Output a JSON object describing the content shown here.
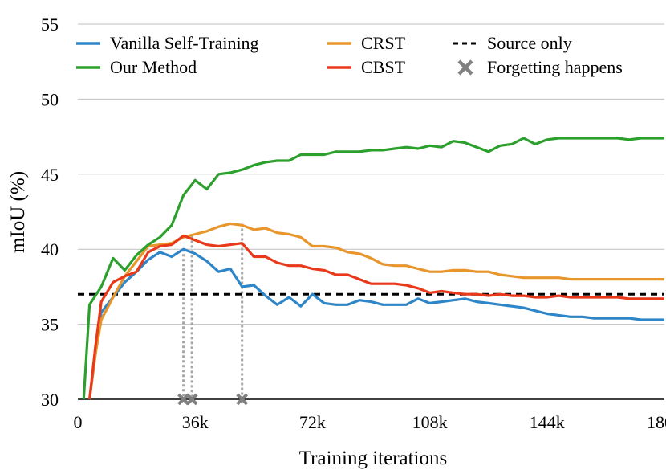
{
  "chart_data": {
    "type": "line",
    "title": "",
    "xlabel": "Training iterations",
    "ylabel": "mIoU (%)",
    "xlim": [
      0,
      180000
    ],
    "ylim": [
      30,
      55
    ],
    "x_ticks": [
      0,
      36000,
      72000,
      108000,
      144000,
      180000
    ],
    "x_tick_labels": [
      "0",
      "36k",
      "72k",
      "108k",
      "144k",
      "180k"
    ],
    "y_ticks": [
      30,
      35,
      40,
      45,
      50,
      55
    ],
    "y_tick_labels": [
      "30",
      "35",
      "40",
      "45",
      "50",
      "55"
    ],
    "legend_position": "top",
    "series": [
      {
        "name": "Vanilla Self-Training",
        "color": "#2e86c8",
        "points": [
          [
            3600,
            30
          ],
          [
            5400,
            33
          ],
          [
            7200,
            35.8
          ],
          [
            10800,
            36.8
          ],
          [
            14400,
            37.8
          ],
          [
            18000,
            38.5
          ],
          [
            21600,
            39.3
          ],
          [
            25200,
            39.8
          ],
          [
            28800,
            39.5
          ],
          [
            32400,
            40.0
          ],
          [
            36000,
            39.7
          ],
          [
            39600,
            39.2
          ],
          [
            43200,
            38.5
          ],
          [
            46800,
            38.7
          ],
          [
            50400,
            37.5
          ],
          [
            54000,
            37.6
          ],
          [
            57600,
            36.9
          ],
          [
            61200,
            36.3
          ],
          [
            64800,
            36.8
          ],
          [
            68400,
            36.2
          ],
          [
            72000,
            37.0
          ],
          [
            75600,
            36.4
          ],
          [
            79200,
            36.3
          ],
          [
            82800,
            36.3
          ],
          [
            86400,
            36.6
          ],
          [
            90000,
            36.5
          ],
          [
            93600,
            36.3
          ],
          [
            97200,
            36.3
          ],
          [
            100800,
            36.3
          ],
          [
            104400,
            36.7
          ],
          [
            108000,
            36.4
          ],
          [
            111600,
            36.5
          ],
          [
            115200,
            36.6
          ],
          [
            118800,
            36.7
          ],
          [
            122400,
            36.5
          ],
          [
            126000,
            36.4
          ],
          [
            129600,
            36.3
          ],
          [
            133200,
            36.2
          ],
          [
            136800,
            36.1
          ],
          [
            140400,
            35.9
          ],
          [
            144000,
            35.7
          ],
          [
            147600,
            35.6
          ],
          [
            151200,
            35.5
          ],
          [
            154800,
            35.5
          ],
          [
            158400,
            35.4
          ],
          [
            162000,
            35.4
          ],
          [
            165600,
            35.4
          ],
          [
            169200,
            35.4
          ],
          [
            172800,
            35.3
          ],
          [
            176400,
            35.3
          ],
          [
            180000,
            35.3
          ]
        ]
      },
      {
        "name": "Our Method",
        "color": "#2ca02c",
        "points": [
          [
            1800,
            30
          ],
          [
            3600,
            36.3
          ],
          [
            7200,
            37.5
          ],
          [
            10800,
            39.4
          ],
          [
            14400,
            38.6
          ],
          [
            18000,
            39.6
          ],
          [
            21600,
            40.3
          ],
          [
            25200,
            40.8
          ],
          [
            28800,
            41.6
          ],
          [
            32400,
            43.6
          ],
          [
            36000,
            44.6
          ],
          [
            39600,
            44.0
          ],
          [
            43200,
            45.0
          ],
          [
            46800,
            45.1
          ],
          [
            50400,
            45.3
          ],
          [
            54000,
            45.6
          ],
          [
            57600,
            45.8
          ],
          [
            61200,
            45.9
          ],
          [
            64800,
            45.9
          ],
          [
            68400,
            46.3
          ],
          [
            72000,
            46.3
          ],
          [
            75600,
            46.3
          ],
          [
            79200,
            46.5
          ],
          [
            82800,
            46.5
          ],
          [
            86400,
            46.5
          ],
          [
            90000,
            46.6
          ],
          [
            93600,
            46.6
          ],
          [
            97200,
            46.7
          ],
          [
            100800,
            46.8
          ],
          [
            104400,
            46.7
          ],
          [
            108000,
            46.9
          ],
          [
            111600,
            46.8
          ],
          [
            115200,
            47.2
          ],
          [
            118800,
            47.1
          ],
          [
            122400,
            46.8
          ],
          [
            126000,
            46.5
          ],
          [
            129600,
            46.9
          ],
          [
            133200,
            47.0
          ],
          [
            136800,
            47.4
          ],
          [
            140400,
            47.0
          ],
          [
            144000,
            47.3
          ],
          [
            147600,
            47.4
          ],
          [
            151200,
            47.4
          ],
          [
            154800,
            47.4
          ],
          [
            158400,
            47.4
          ],
          [
            162000,
            47.4
          ],
          [
            165600,
            47.4
          ],
          [
            169200,
            47.3
          ],
          [
            172800,
            47.4
          ],
          [
            176400,
            47.4
          ],
          [
            180000,
            47.4
          ]
        ]
      },
      {
        "name": "CRST",
        "color": "#e8962c",
        "points": [
          [
            3600,
            30
          ],
          [
            5400,
            33.0
          ],
          [
            7200,
            35.3
          ],
          [
            10800,
            36.8
          ],
          [
            14400,
            38.2
          ],
          [
            18000,
            39.2
          ],
          [
            21600,
            40.2
          ],
          [
            25200,
            40.3
          ],
          [
            28800,
            40.4
          ],
          [
            32400,
            40.8
          ],
          [
            36000,
            41.0
          ],
          [
            39600,
            41.2
          ],
          [
            43200,
            41.5
          ],
          [
            46800,
            41.7
          ],
          [
            50400,
            41.6
          ],
          [
            54000,
            41.3
          ],
          [
            57600,
            41.4
          ],
          [
            61200,
            41.1
          ],
          [
            64800,
            41.0
          ],
          [
            68400,
            40.8
          ],
          [
            72000,
            40.2
          ],
          [
            75600,
            40.2
          ],
          [
            79200,
            40.1
          ],
          [
            82800,
            39.8
          ],
          [
            86400,
            39.7
          ],
          [
            90000,
            39.4
          ],
          [
            93600,
            39.0
          ],
          [
            97200,
            38.9
          ],
          [
            100800,
            38.9
          ],
          [
            104400,
            38.7
          ],
          [
            108000,
            38.5
          ],
          [
            111600,
            38.5
          ],
          [
            115200,
            38.6
          ],
          [
            118800,
            38.6
          ],
          [
            122400,
            38.5
          ],
          [
            126000,
            38.5
          ],
          [
            129600,
            38.3
          ],
          [
            133200,
            38.2
          ],
          [
            136800,
            38.1
          ],
          [
            140400,
            38.1
          ],
          [
            144000,
            38.1
          ],
          [
            147600,
            38.1
          ],
          [
            151200,
            38.0
          ],
          [
            154800,
            38.0
          ],
          [
            158400,
            38.0
          ],
          [
            162000,
            38.0
          ],
          [
            165600,
            38.0
          ],
          [
            169200,
            38.0
          ],
          [
            172800,
            38.0
          ],
          [
            176400,
            38.0
          ],
          [
            180000,
            38.0
          ]
        ]
      },
      {
        "name": "CBST",
        "color": "#e8391a",
        "points": [
          [
            3600,
            30
          ],
          [
            5400,
            33.5
          ],
          [
            7200,
            36.5
          ],
          [
            10800,
            37.8
          ],
          [
            14400,
            38.2
          ],
          [
            18000,
            38.5
          ],
          [
            21600,
            39.8
          ],
          [
            25200,
            40.2
          ],
          [
            28800,
            40.3
          ],
          [
            32400,
            40.9
          ],
          [
            36000,
            40.6
          ],
          [
            39600,
            40.3
          ],
          [
            43200,
            40.2
          ],
          [
            46800,
            40.3
          ],
          [
            50400,
            40.4
          ],
          [
            54000,
            39.5
          ],
          [
            57600,
            39.5
          ],
          [
            61200,
            39.1
          ],
          [
            64800,
            38.9
          ],
          [
            68400,
            38.9
          ],
          [
            72000,
            38.7
          ],
          [
            75600,
            38.6
          ],
          [
            79200,
            38.3
          ],
          [
            82800,
            38.3
          ],
          [
            86400,
            38.0
          ],
          [
            90000,
            37.7
          ],
          [
            93600,
            37.7
          ],
          [
            97200,
            37.7
          ],
          [
            100800,
            37.6
          ],
          [
            104400,
            37.4
          ],
          [
            108000,
            37.1
          ],
          [
            111600,
            37.2
          ],
          [
            115200,
            37.1
          ],
          [
            118800,
            37.0
          ],
          [
            122400,
            37.0
          ],
          [
            126000,
            36.9
          ],
          [
            129600,
            37.0
          ],
          [
            133200,
            36.9
          ],
          [
            136800,
            36.9
          ],
          [
            140400,
            36.8
          ],
          [
            144000,
            36.8
          ],
          [
            147600,
            36.9
          ],
          [
            151200,
            36.8
          ],
          [
            154800,
            36.8
          ],
          [
            158400,
            36.8
          ],
          [
            162000,
            36.8
          ],
          [
            165600,
            36.8
          ],
          [
            169200,
            36.7
          ],
          [
            172800,
            36.7
          ],
          [
            176400,
            36.7
          ],
          [
            180000,
            36.7
          ]
        ]
      },
      {
        "name": "Source only",
        "color": "#000000",
        "style": "dashed",
        "points": [
          [
            0,
            37.0
          ],
          [
            180000,
            37.0
          ]
        ]
      }
    ],
    "forgetting": {
      "name": "Forgetting happens",
      "color": "#808080",
      "iterations": [
        32400,
        35000,
        50400
      ],
      "y_values": [
        40.0,
        40.9,
        41.7
      ]
    }
  }
}
